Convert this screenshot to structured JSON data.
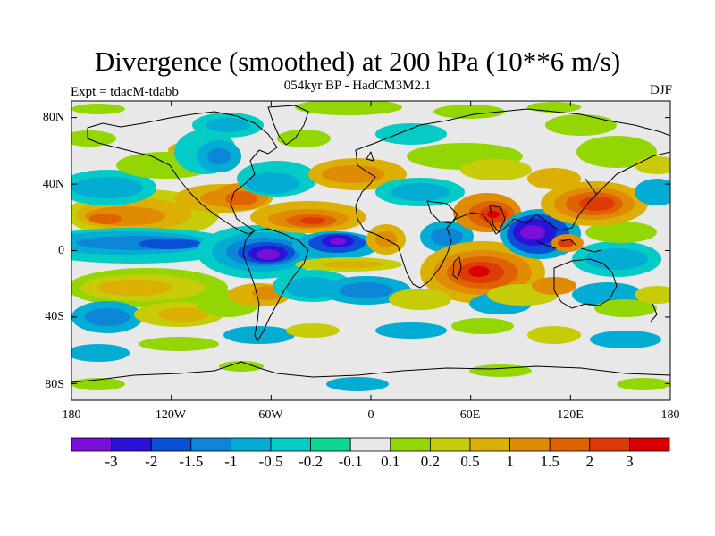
{
  "figure": {
    "title": "Divergence (smoothed) at 200 hPa (10**6 m/s)",
    "subtitle": "054kyr BP - HadCM3M2.1",
    "left_label": "Expt = tdacM-tdabb",
    "right_label": "DJF"
  },
  "map": {
    "projection": "cylindrical equidistant",
    "lon_range": [
      -180,
      180
    ],
    "lat_range": [
      -90,
      90
    ],
    "lat_ticks": [
      "80N",
      "40N",
      "0",
      "40S",
      "80S"
    ],
    "lon_ticks": [
      "180",
      "120W",
      "60W",
      "0",
      "60E",
      "120E",
      "180"
    ],
    "background_color": "#e8e8e8",
    "coastline_color": "#000000"
  },
  "colorbar": {
    "colors": [
      "#7a10d8",
      "#2a12d6",
      "#0a4fd6",
      "#0d86d8",
      "#02acd2",
      "#04cbc6",
      "#0fd790",
      "#e8e8e8",
      "#94d603",
      "#c6cd08",
      "#dbaf04",
      "#df8b04",
      "#e06100",
      "#dc3a06",
      "#d80000"
    ],
    "labels": [
      "-3",
      "-2",
      "-1.5",
      "-1",
      "-0.5",
      "-0.2",
      "-0.1",
      "0.1",
      "0.2",
      "0.5",
      "1",
      "1.5",
      "2",
      "3"
    ]
  },
  "chart_data": {
    "type": "filled-contour map",
    "title": "Divergence (smoothed) at 200 hPa (10**6 m/s)",
    "subtitle": "054kyr BP - HadCM3M2.1",
    "experiment": "tdacM-tdabb",
    "season": "DJF",
    "levels": [
      -3,
      -2,
      -1.5,
      -1,
      -0.5,
      -0.2,
      -0.1,
      0.1,
      0.2,
      0.5,
      1,
      1.5,
      2,
      3
    ],
    "features": [
      {
        "region": "Maritime Continent / eastern Indian Ocean (90E-110E, 0-10N)",
        "value_range": [
          -3,
          -2
        ]
      },
      {
        "region": "Equatorial South America (60W-80W, 0-10S)",
        "value_range": [
          -3,
          -2
        ]
      },
      {
        "region": "Equatorial Atlantic (10W-20W, 0)",
        "value_range": [
          -3,
          -1.5
        ]
      },
      {
        "region": "Central equatorial Pacific (150W-120W, 0-5N)",
        "value_range": [
          -1.5,
          -0.5
        ]
      },
      {
        "region": "Southwest Indian Ocean / Madagascar (50E-70E, 15S-25S)",
        "value_range": [
          1.5,
          3
        ]
      },
      {
        "region": "Indian subcontinent / Arabian Sea (70E-80E, 15N)",
        "value_range": [
          1.5,
          3
        ]
      },
      {
        "region": "Northwest Pacific / Japan (130E-150E, 25N-35N)",
        "value_range": [
          1.5,
          3
        ]
      },
      {
        "region": "Eastern North Pacific (140W-100W, 10N-20N)",
        "value_range": [
          1,
          2
        ]
      },
      {
        "region": "Tropical North Atlantic (20W-50W, 10N-20N)",
        "value_range": [
          1,
          2
        ]
      },
      {
        "region": "Polar regions (north of 75N, south of 70S)",
        "value_range": [
          -0.1,
          0.1
        ]
      }
    ]
  }
}
